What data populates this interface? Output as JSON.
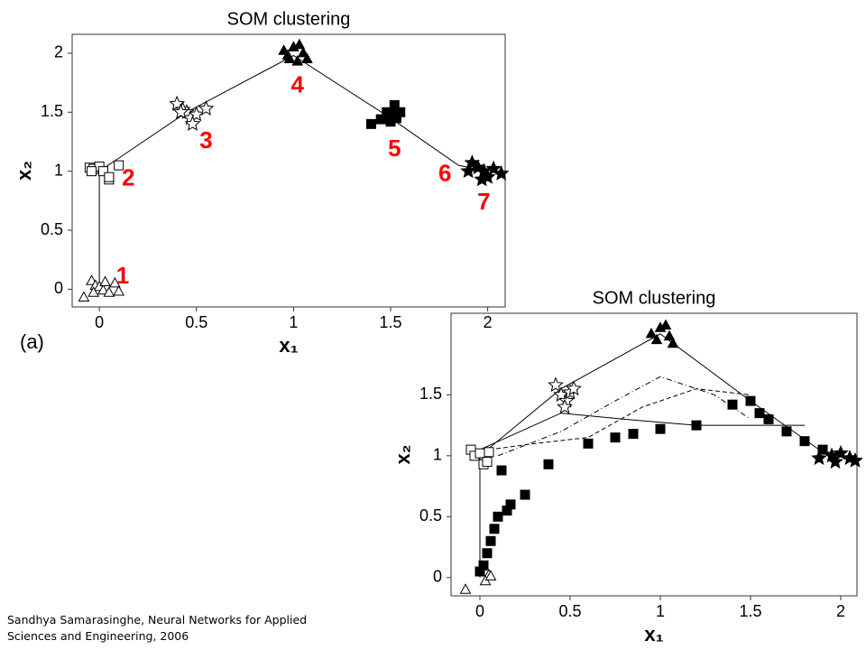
{
  "chart_data": [
    {
      "type": "scatter",
      "title": "SOM clustering",
      "xlabel": "x₁",
      "ylabel": "x₂",
      "panel_label": "(a)",
      "xlim": [
        -0.14,
        2.09
      ],
      "ylim": [
        -0.15,
        2.16
      ],
      "xticks": [
        0,
        0.5,
        1,
        1.5,
        2
      ],
      "yticks": [
        0,
        0.5,
        1,
        1.5,
        2
      ],
      "series": [
        {
          "marker": "triangle",
          "filled": false,
          "color": "#000000",
          "x": [
            -0.08,
            -0.04,
            -0.02,
            0,
            0.02,
            0.05,
            0.08,
            0.1,
            -0.03,
            0.03
          ],
          "y": [
            -0.07,
            0.07,
            0.03,
            0.02,
            -0.01,
            -0.03,
            0.05,
            -0.02,
            -0.03,
            0.06
          ]
        },
        {
          "marker": "square",
          "filled": false,
          "color": "#000000",
          "x": [
            -0.05,
            -0.03,
            0,
            0.02,
            0.05,
            0.1,
            0.05,
            -0.04
          ],
          "y": [
            1.03,
            1.02,
            1.04,
            1,
            0.93,
            1.05,
            0.95,
            1.0
          ]
        },
        {
          "marker": "star",
          "filled": false,
          "color": "#000000",
          "x": [
            0.4,
            0.43,
            0.45,
            0.47,
            0.5,
            0.55,
            0.48,
            0.42
          ],
          "y": [
            1.57,
            1.52,
            1.5,
            1.45,
            1.48,
            1.53,
            1.4,
            1.5
          ]
        },
        {
          "marker": "triangle",
          "filled": true,
          "color": "#000000",
          "x": [
            0.95,
            1,
            1.03,
            1.05,
            0.98,
            1.02,
            1.07,
            0.97
          ],
          "y": [
            2.02,
            2.05,
            2.07,
            2.0,
            1.95,
            1.93,
            1.95,
            1.98
          ]
        },
        {
          "marker": "square",
          "filled": true,
          "color": "#000000",
          "x": [
            1.4,
            1.45,
            1.5,
            1.52,
            1.55,
            1.5,
            1.53,
            1.48
          ],
          "y": [
            1.4,
            1.44,
            1.48,
            1.56,
            1.5,
            1.42,
            1.45,
            1.5
          ]
        },
        {
          "marker": "star",
          "filled": true,
          "color": "#000000",
          "x": [
            1.92,
            1.95,
            1.98,
            2,
            2.03,
            2.07,
            1.97,
            1.9
          ],
          "y": [
            1.07,
            1.03,
            1.0,
            0.95,
            1.02,
            0.98,
            0.93,
            1.0
          ]
        }
      ],
      "lines": [
        {
          "style": "solid",
          "color": "#000000",
          "x": [
            0,
            0,
            0.45,
            1,
            1.5,
            1.85,
            2
          ],
          "y": [
            0,
            1,
            1.5,
            1.98,
            1.45,
            1.05,
            1.0
          ]
        }
      ],
      "annotations": [
        {
          "text": "1",
          "x": 0.12,
          "y": 0.1,
          "color": "#ff0000"
        },
        {
          "text": "2",
          "x": 0.15,
          "y": 0.93,
          "color": "#ff0000"
        },
        {
          "text": "3",
          "x": 0.55,
          "y": 1.25,
          "color": "#ff0000"
        },
        {
          "text": "4",
          "x": 1.02,
          "y": 1.72,
          "color": "#ff0000"
        },
        {
          "text": "5",
          "x": 1.52,
          "y": 1.18,
          "color": "#ff0000"
        },
        {
          "text": "6",
          "x": 1.78,
          "y": 0.97,
          "color": "#ff0000"
        },
        {
          "text": "7",
          "x": 1.98,
          "y": 0.73,
          "color": "#ff0000"
        }
      ]
    },
    {
      "type": "scatter",
      "title": "SOM clustering",
      "xlabel": "x₁",
      "ylabel": "x₂",
      "xlim": [
        -0.16,
        2.09
      ],
      "ylim": [
        -0.15,
        2.17
      ],
      "xticks": [
        0,
        0.5,
        1,
        1.5,
        2
      ],
      "yticks": [
        0,
        0.5,
        1,
        1.5
      ],
      "series": [
        {
          "marker": "triangle",
          "filled": false,
          "color": "#000000",
          "x": [
            -0.08,
            0.05,
            0.03,
            0.06
          ],
          "y": [
            -0.1,
            0.02,
            -0.03,
            0.01
          ]
        },
        {
          "marker": "square",
          "filled": false,
          "color": "#000000",
          "x": [
            -0.05,
            -0.03,
            0,
            0.02,
            0.04,
            0.05
          ],
          "y": [
            1.05,
            1.0,
            1.02,
            0.93,
            0.95,
            1.03
          ]
        },
        {
          "marker": "star",
          "filled": false,
          "color": "#000000",
          "x": [
            0.42,
            0.45,
            0.48,
            0.5,
            0.47,
            0.52
          ],
          "y": [
            1.58,
            1.5,
            1.45,
            1.52,
            1.4,
            1.55
          ]
        },
        {
          "marker": "triangle",
          "filled": true,
          "color": "#000000",
          "x": [
            0.95,
            1,
            1.03,
            1.05,
            0.98,
            1.07
          ],
          "y": [
            2.0,
            2.05,
            2.07,
            1.98,
            1.95,
            1.92
          ]
        },
        {
          "marker": "square",
          "filled": true,
          "color": "#000000",
          "x": [
            0,
            0.02,
            0.04,
            0.06,
            0.08,
            0.1,
            0.15,
            0.17,
            0.25,
            0.12,
            0.38,
            0.6,
            0.75,
            0.85,
            1.0,
            1.2,
            1.4,
            1.5,
            1.55,
            1.6,
            1.7,
            1.8,
            1.9
          ],
          "y": [
            0.05,
            0.1,
            0.2,
            0.3,
            0.4,
            0.5,
            0.55,
            0.6,
            0.68,
            0.88,
            0.93,
            1.1,
            1.15,
            1.18,
            1.22,
            1.25,
            1.42,
            1.45,
            1.35,
            1.3,
            1.2,
            1.12,
            1.05
          ]
        },
        {
          "marker": "star",
          "filled": true,
          "color": "#000000",
          "x": [
            1.88,
            1.95,
            2,
            2.05,
            2.08,
            1.97
          ],
          "y": [
            0.98,
            1.0,
            1.02,
            0.98,
            0.96,
            0.95
          ]
        }
      ],
      "lines": [
        {
          "style": "solid",
          "color": "#000000",
          "x": [
            0,
            0,
            0.45,
            1,
            1.5,
            1.88,
            2.05
          ],
          "y": [
            0,
            1,
            1.55,
            2,
            1.45,
            1.05,
            0.98
          ]
        },
        {
          "style": "solid",
          "color": "#000000",
          "x": [
            0,
            0.45,
            0.8,
            1.2,
            1.6,
            1.8
          ],
          "y": [
            1.05,
            1.35,
            1.3,
            1.25,
            1.25,
            1.25
          ]
        },
        {
          "style": "dashed",
          "color": "#000000",
          "x": [
            0.05,
            0.3,
            0.6,
            0.9,
            1.2,
            1.5
          ],
          "y": [
            1.05,
            1.1,
            1.15,
            1.4,
            1.55,
            1.5
          ]
        },
        {
          "style": "dashdot",
          "color": "#000000",
          "x": [
            0.1,
            0.45,
            0.75,
            1.0,
            1.3,
            1.5
          ],
          "y": [
            1.0,
            1.2,
            1.45,
            1.65,
            1.5,
            1.3
          ]
        }
      ]
    }
  ],
  "source": [
    "Sandhya Samarasinghe, Neural Networks for Applied",
    "Sciences and Engineering, 2006"
  ]
}
